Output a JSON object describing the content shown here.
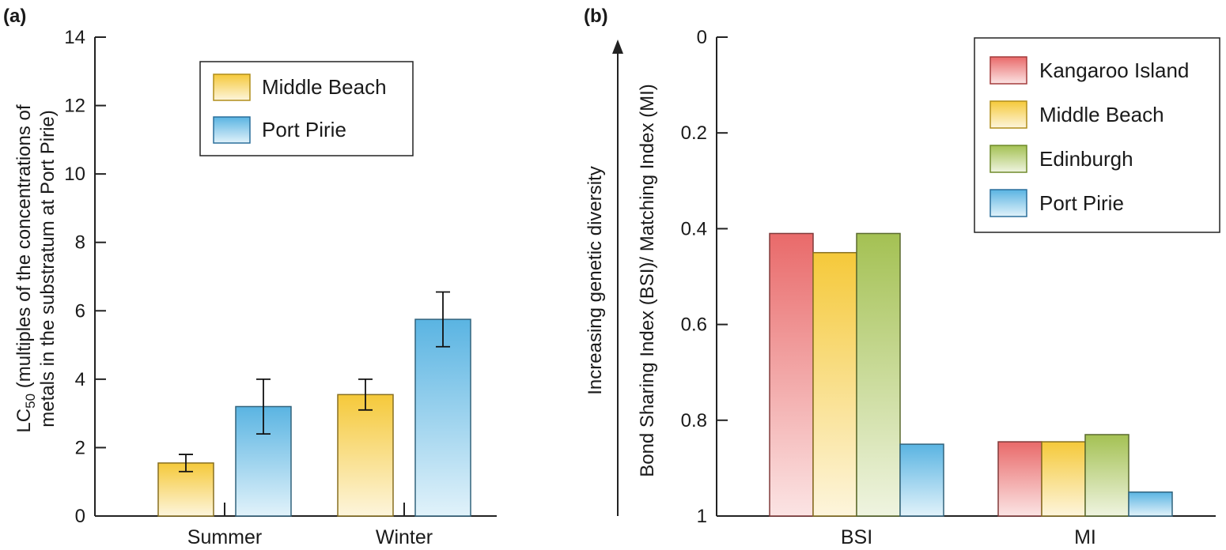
{
  "chart_data": [
    {
      "panel_label": "(a)",
      "type": "bar",
      "categories": [
        "Summer",
        "Winter"
      ],
      "series": [
        {
          "name": "Middle Beach",
          "values": [
            1.55,
            3.55
          ],
          "errors": [
            0.25,
            0.45
          ]
        },
        {
          "name": "Port Pirie",
          "values": [
            3.2,
            5.75
          ],
          "errors": [
            0.8,
            0.8
          ]
        }
      ],
      "ylim": [
        0,
        14
      ],
      "yticks": [
        "0",
        "2",
        "4",
        "6",
        "8",
        "10",
        "12",
        "14"
      ],
      "ylabel_line1_prefix": "LC",
      "ylabel_line1_sub": "50",
      "ylabel_line1_rest": " (multiples of the concentrations of",
      "ylabel_line2": "metals in the substratum at Port Pirie)",
      "legend_position": "top-center",
      "colors": {
        "Middle Beach": "#f5c93a",
        "Port Pirie": "#5ab4e2"
      }
    },
    {
      "panel_label": "(b)",
      "type": "bar",
      "categories": [
        "BSI",
        "MI"
      ],
      "series": [
        {
          "name": "Kangaroo Island",
          "values": [
            0.41,
            0.845
          ]
        },
        {
          "name": "Middle Beach",
          "values": [
            0.45,
            0.845
          ]
        },
        {
          "name": "Edinburgh",
          "values": [
            0.41,
            0.83
          ]
        },
        {
          "name": "Port Pirie",
          "values": [
            0.85,
            0.95
          ]
        }
      ],
      "ylim": [
        1,
        0
      ],
      "y_inverted": true,
      "yticks": [
        "0",
        "0.2",
        "0.4",
        "0.6",
        "0.8",
        "1"
      ],
      "ylabel": "Bond Sharing Index (BSI)/ Matching Index (MI)",
      "annotation": "Increasing genetic diversity",
      "legend_position": "top-right",
      "colors": {
        "Kangaroo Island": "#e96a6a",
        "Middle Beach": "#f5c93a",
        "Edinburgh": "#a4c153",
        "Port Pirie": "#5ab4e2"
      }
    }
  ]
}
